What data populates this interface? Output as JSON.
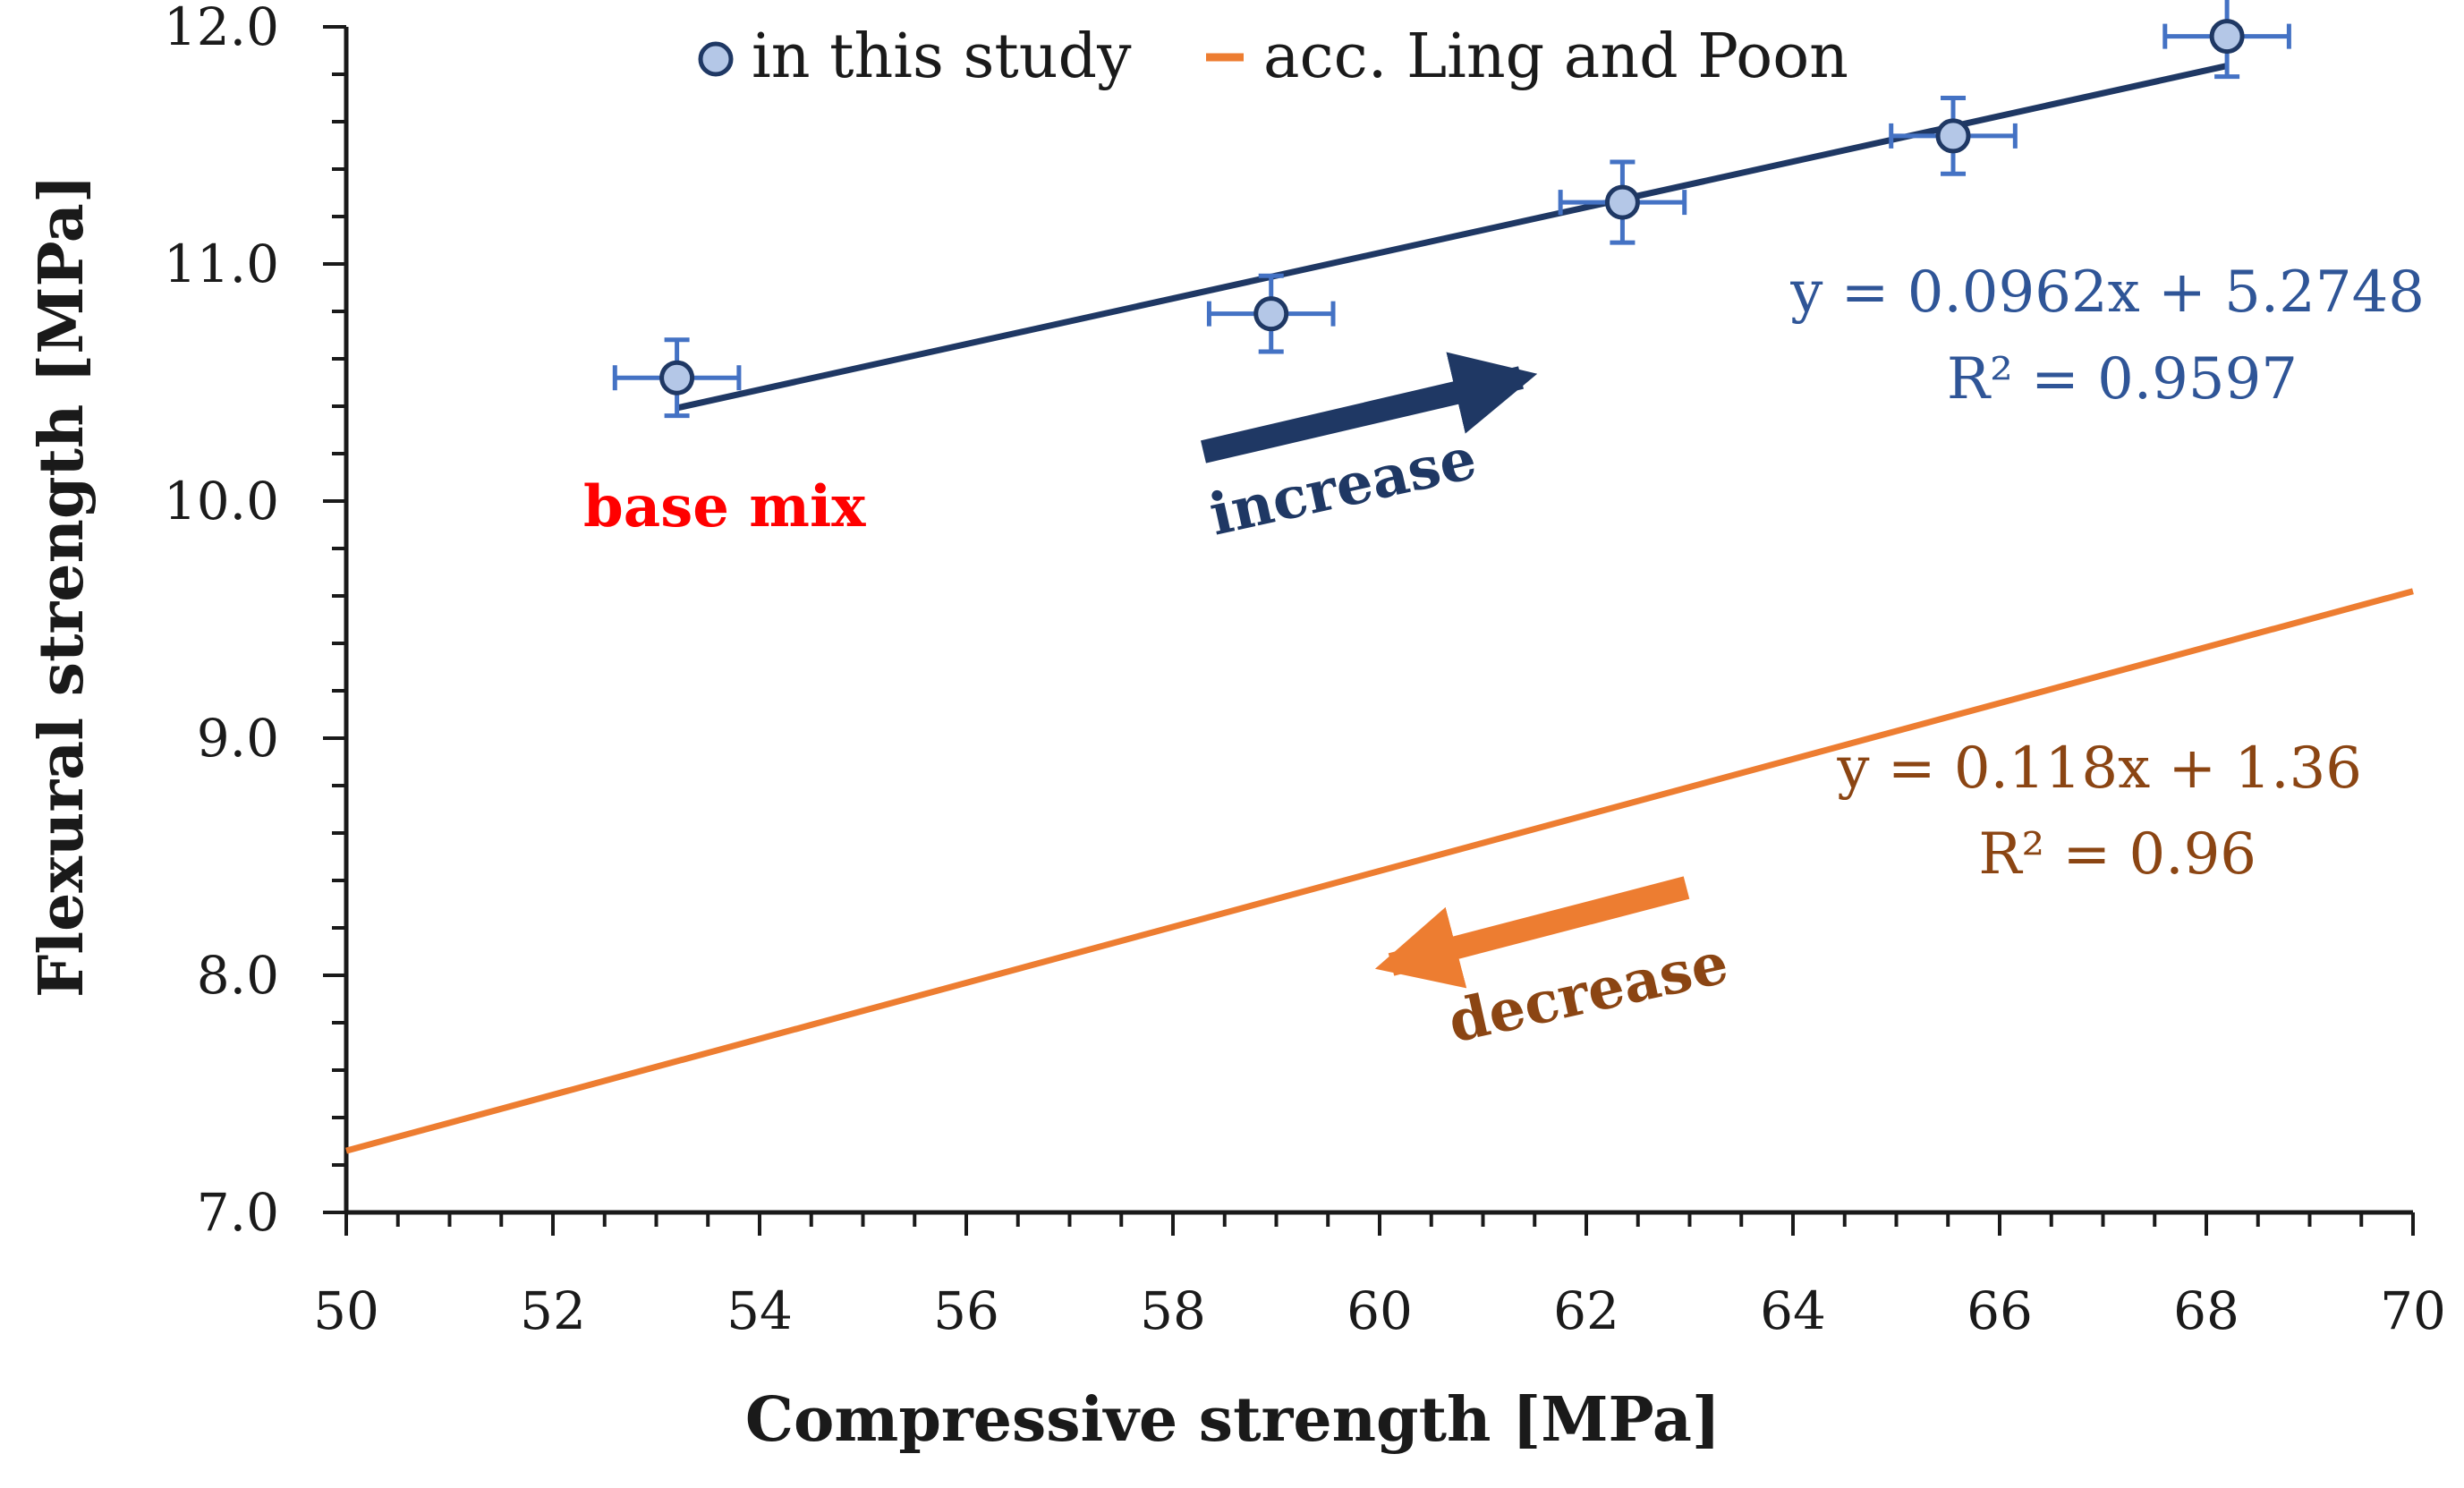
{
  "chart_data": {
    "type": "scatter",
    "xlabel": "Compressive strength [MPa]",
    "ylabel": "Flexural strength [MPa]",
    "xlim": [
      50,
      70
    ],
    "ylim": [
      7.0,
      12.0
    ],
    "x_ticks": [
      "50",
      "52",
      "54",
      "56",
      "58",
      "60",
      "62",
      "64",
      "66",
      "68",
      "70"
    ],
    "y_ticks": [
      "7.0",
      "8.0",
      "9.0",
      "10.0",
      "11.0",
      "12.0"
    ],
    "grid": false,
    "legend_position": "top",
    "legend": [
      "in this study",
      "acc. Ling and Poon"
    ],
    "series": [
      {
        "name": "in this study",
        "kind": "scatter",
        "color": "#1F3864",
        "marker_fill": "#B4C7E7",
        "errorbar_color": "#4472C4",
        "points": [
          {
            "x": 53.2,
            "y": 10.52,
            "xerr": 0.6,
            "yerr": 0.16
          },
          {
            "x": 58.95,
            "y": 10.79,
            "xerr": 0.6,
            "yerr": 0.16
          },
          {
            "x": 62.35,
            "y": 11.26,
            "xerr": 0.6,
            "yerr": 0.17
          },
          {
            "x": 65.55,
            "y": 11.54,
            "xerr": 0.6,
            "yerr": 0.16
          },
          {
            "x": 68.2,
            "y": 11.96,
            "xerr": 0.6,
            "yerr": 0.17
          }
        ],
        "trendline": {
          "slope": 0.0962,
          "intercept": 5.2748,
          "x_range": [
            53.2,
            68.2
          ],
          "color": "#1F3864"
        },
        "equation": "y = 0.0962x + 5.2748",
        "r2": "R² = 0.9597"
      },
      {
        "name": "acc. Ling and Poon",
        "kind": "line",
        "color": "#ED7D31",
        "slope": 0.118,
        "intercept": 1.36,
        "x_range": [
          50,
          70
        ],
        "equation": "y = 0.118x + 1.36",
        "r2": "R² = 0.96"
      }
    ],
    "annotations": {
      "base_mix": {
        "text": "base mix",
        "color": "#FF0000"
      },
      "increase": {
        "text": "increase",
        "color": "#1F3864"
      },
      "decrease": {
        "text": "decrease",
        "color": "#8B4513",
        "arrow_color": "#ED7D31"
      }
    }
  }
}
